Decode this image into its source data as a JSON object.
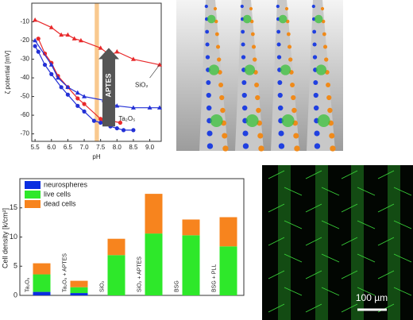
{
  "chart_data": [
    {
      "type": "scatter",
      "xlabel": "pH",
      "ylabel": "ζ potential [mV]",
      "xlim": [
        5.4,
        9.35
      ],
      "ylim": [
        -74,
        0
      ],
      "xticks": [
        5.5,
        {
          "value": 6,
          "label": "6.0"
        },
        6.5,
        {
          "value": 7,
          "label": "7.0"
        },
        7.5,
        {
          "value": 8,
          "label": "8.0"
        },
        8.5,
        {
          "value": 9,
          "label": "9.0"
        }
      ],
      "yticks": [
        -10,
        -20,
        -30,
        -40,
        -50,
        -60,
        -70
      ],
      "band": [
        7.32,
        7.45
      ],
      "band_color": "#f9c98f",
      "annotations": [
        "APTES",
        "SiO₂",
        "Ta₂O₅"
      ],
      "series": [
        {
          "color": "#e8292b",
          "marker": "triangle",
          "x": [
            5.5,
            6.0,
            6.3,
            6.5,
            6.7,
            6.9,
            7.5,
            7.8,
            8.0,
            8.5,
            9.3
          ],
          "values": [
            -9,
            -13,
            -17,
            -17,
            -19,
            -20,
            -24,
            -28,
            -26,
            -30,
            -33
          ]
        },
        {
          "color": "#e8292b",
          "marker": "circle",
          "x": [
            5.6,
            5.8,
            6.0,
            6.2,
            6.5,
            6.8,
            7.0,
            7.5,
            7.6,
            7.8,
            8.1
          ],
          "values": [
            -19,
            -27,
            -32,
            -39,
            -45,
            -51,
            -54,
            -62,
            -63,
            -63,
            -64
          ]
        },
        {
          "color": "#2330d6",
          "marker": "triangle",
          "x": [
            5.5,
            6.0,
            6.2,
            6.5,
            6.8,
            7.0,
            7.6,
            8.0,
            8.5,
            9.0,
            9.3
          ],
          "values": [
            -20,
            -33,
            -40,
            -45,
            -48,
            -50,
            -52,
            -55,
            -56,
            -56,
            -56
          ]
        },
        {
          "color": "#2330d6",
          "marker": "circle",
          "x": [
            5.5,
            5.6,
            5.8,
            6.0,
            6.3,
            6.5,
            6.8,
            7.0,
            7.3,
            7.5,
            7.8,
            8.0,
            8.2,
            8.5
          ],
          "values": [
            -23,
            -26,
            -33,
            -38,
            -45,
            -49,
            -55,
            -58,
            -63,
            -64,
            -66,
            -67,
            -68,
            -68
          ]
        }
      ]
    },
    {
      "type": "stacked_bar",
      "ylabel": "Cell density [k/cm²]",
      "categories": [
        "Ta₂O₅",
        "Ta₂O₅ + APTES",
        "SiO₂",
        "SiO₂ + APTES",
        "BSG",
        "BSG + PLL"
      ],
      "ylim": [
        0,
        20
      ],
      "yticks": [
        0,
        5,
        10,
        15
      ],
      "legend": "top-left",
      "series": [
        {
          "name": "neurospheres",
          "color": "#0a2ee0",
          "values": [
            0.6,
            0.4,
            0,
            0,
            0,
            0
          ]
        },
        {
          "name": "live cells",
          "color": "#2ee82a",
          "values": [
            3.0,
            1.0,
            6.9,
            10.6,
            10.3,
            8.4
          ]
        },
        {
          "name": "dead cells",
          "color": "#f7841e",
          "values": [
            1.9,
            1.1,
            2.8,
            6.8,
            2.7,
            5.0
          ]
        }
      ]
    }
  ],
  "image": {
    "scale_bar": "100 µm"
  }
}
